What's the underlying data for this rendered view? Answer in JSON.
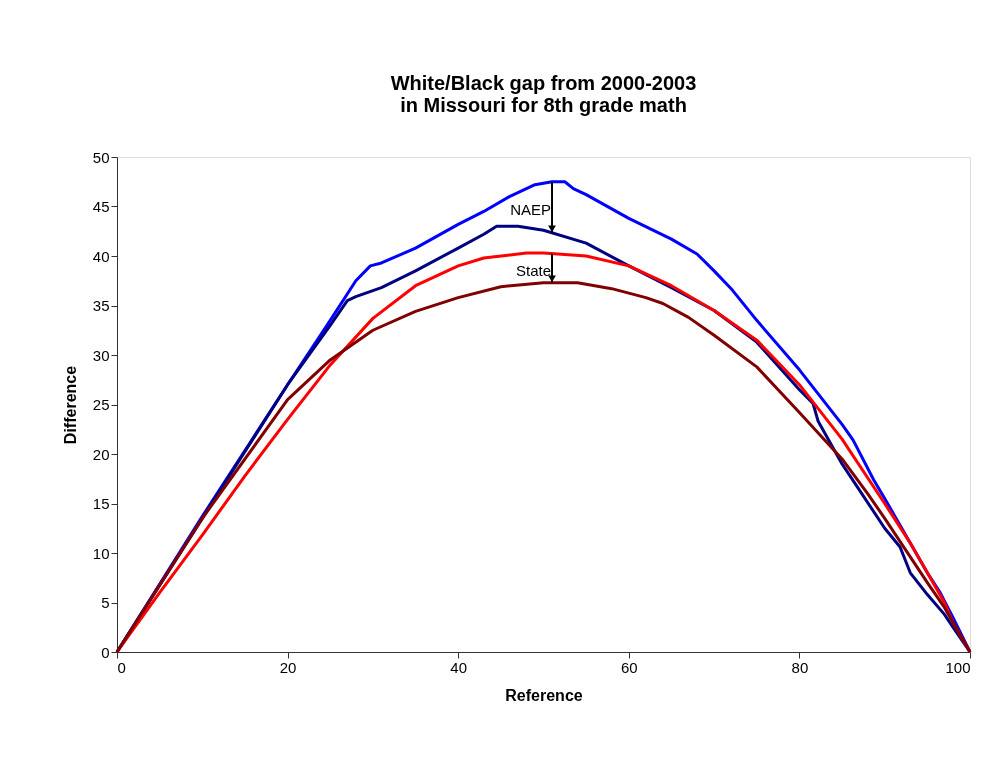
{
  "chart_data": {
    "type": "line",
    "title": "White/Black gap from 2000-2003\nin Missouri for 8th grade math",
    "xlabel": "Reference",
    "ylabel": "Difference",
    "xlim": [
      0,
      100
    ],
    "xticks": [
      0,
      20,
      40,
      60,
      80,
      100
    ],
    "ylim": [
      0,
      50
    ],
    "yticks": [
      0,
      5,
      10,
      15,
      20,
      25,
      30,
      35,
      40,
      45,
      50
    ],
    "grid": false,
    "legend": false,
    "marker": "none",
    "line_style": "solid",
    "series": [
      {
        "color": "#0000ff",
        "x": [
          0,
          10,
          20,
          25,
          28,
          29.7,
          31,
          35,
          40,
          43,
          46,
          49,
          51,
          52.5,
          53.5,
          55,
          60,
          65,
          68,
          70,
          72,
          75,
          80,
          85,
          86.3,
          88.7,
          90,
          95,
          96.5,
          98,
          100
        ],
        "values": [
          0,
          13.7,
          27,
          33.5,
          37.5,
          39,
          39.3,
          40.8,
          43.2,
          44.5,
          46,
          47.2,
          47.5,
          47.5,
          46.8,
          46.2,
          43.8,
          41.7,
          40.2,
          38.5,
          36.7,
          33.5,
          28.5,
          23,
          21.4,
          17.4,
          15.5,
          8,
          6,
          3.5,
          0
        ]
      },
      {
        "color": "#000080",
        "x": [
          0,
          10,
          20,
          25,
          27,
          28,
          31,
          35,
          40,
          43,
          44.5,
          47,
          50,
          55,
          60,
          65,
          70,
          75,
          80,
          81.6,
          82.2,
          85,
          90,
          91.8,
          93,
          95,
          97,
          98,
          100
        ],
        "values": [
          0,
          13.5,
          27,
          33,
          35.5,
          35.9,
          36.8,
          38.5,
          40.8,
          42.2,
          43,
          43,
          42.6,
          41.3,
          39,
          36.8,
          34.5,
          31.3,
          26.5,
          25.1,
          23.3,
          19,
          12.5,
          10.6,
          8,
          5.8,
          3.8,
          2.5,
          0
        ]
      },
      {
        "color": "#ff0000",
        "x": [
          0,
          5,
          10,
          15,
          20,
          25,
          30,
          35,
          40,
          43,
          48,
          50,
          55,
          60,
          65,
          70,
          75,
          80,
          85,
          90,
          93,
          95,
          97,
          98,
          99,
          100
        ],
        "values": [
          0,
          6,
          11.8,
          17.8,
          23.5,
          29,
          33.7,
          37,
          39,
          39.8,
          40.3,
          40.3,
          40,
          39,
          37,
          34.5,
          31.5,
          27,
          21.5,
          15,
          11,
          8,
          5,
          3,
          1.5,
          0
        ]
      },
      {
        "color": "#800000",
        "x": [
          0,
          10,
          20,
          25,
          30,
          35,
          40,
          45,
          50,
          54,
          58,
          62,
          64,
          67,
          70,
          75,
          80,
          85,
          88,
          90,
          95,
          97,
          98,
          100
        ],
        "values": [
          0,
          13.5,
          25.5,
          29.5,
          32.5,
          34.4,
          35.8,
          36.9,
          37.3,
          37.3,
          36.7,
          35.8,
          35.2,
          33.8,
          32,
          28.8,
          24.2,
          19.5,
          16,
          13.5,
          7,
          4.5,
          3,
          0
        ]
      }
    ],
    "annotations": [
      "NAEP",
      "State"
    ]
  }
}
